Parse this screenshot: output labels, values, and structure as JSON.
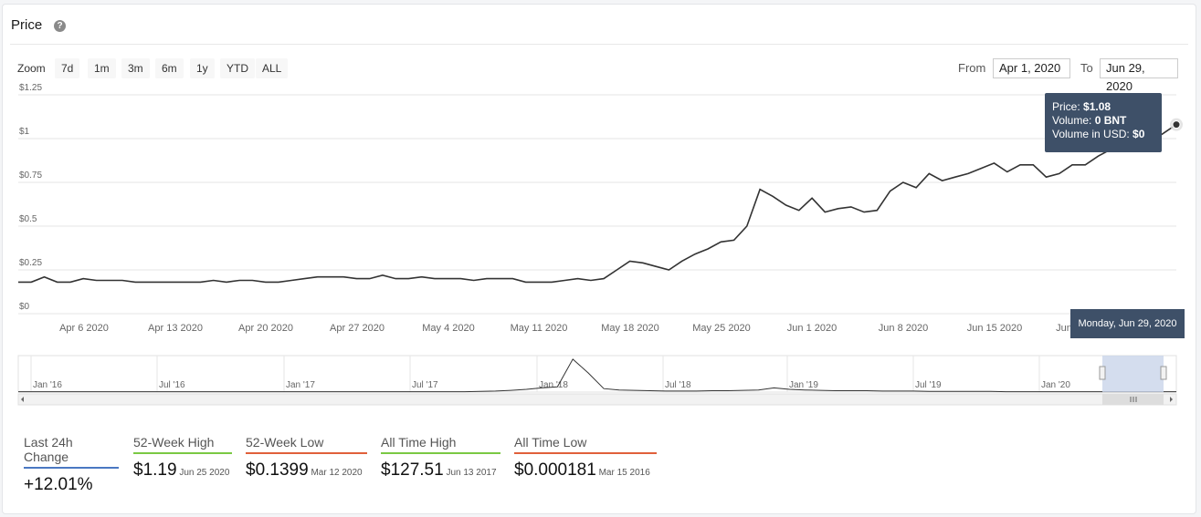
{
  "header": {
    "title": "Price",
    "help_icon": "?"
  },
  "zoom": {
    "label": "Zoom",
    "buttons": [
      "7d",
      "1m",
      "3m",
      "6m",
      "1y",
      "YTD",
      "ALL"
    ]
  },
  "range": {
    "from_label": "From",
    "from_value": "Apr 1, 2020",
    "to_label": "To",
    "to_value": "Jun 29, 2020"
  },
  "chart_data": {
    "type": "line",
    "title": "Price",
    "y_ticks": [
      "$1.25",
      "$1",
      "$0.75",
      "$0.5",
      "$0.25",
      "$0"
    ],
    "ylim": [
      0,
      1.25
    ],
    "x_ticks": [
      "Apr 6 2020",
      "Apr 13 2020",
      "Apr 20 2020",
      "Apr 27 2020",
      "May 4 2020",
      "May 11 2020",
      "May 18 2020",
      "May 25 2020",
      "Jun 1 2020",
      "Jun 8 2020",
      "Jun 15 2020",
      "Jun"
    ],
    "x_range": [
      "2020-04-01",
      "2020-06-29"
    ],
    "series": [
      {
        "values": [
          0.18,
          0.18,
          0.21,
          0.18,
          0.18,
          0.2,
          0.19,
          0.19,
          0.19,
          0.18,
          0.18,
          0.18,
          0.18,
          0.18,
          0.18,
          0.19,
          0.18,
          0.19,
          0.19,
          0.18,
          0.18,
          0.19,
          0.2,
          0.21,
          0.21,
          0.21,
          0.2,
          0.2,
          0.22,
          0.2,
          0.2,
          0.21,
          0.2,
          0.2,
          0.2,
          0.19,
          0.2,
          0.2,
          0.2,
          0.18,
          0.18,
          0.18,
          0.19,
          0.2,
          0.19,
          0.2,
          0.25,
          0.3,
          0.29,
          0.27,
          0.25,
          0.3,
          0.34,
          0.37,
          0.41,
          0.42,
          0.5,
          0.71,
          0.67,
          0.62,
          0.59,
          0.66,
          0.58,
          0.6,
          0.61,
          0.58,
          0.59,
          0.7,
          0.75,
          0.72,
          0.8,
          0.76,
          0.78,
          0.8,
          0.83,
          0.86,
          0.81,
          0.85,
          0.85,
          0.78,
          0.8,
          0.85,
          0.85,
          0.9,
          0.94,
          0.93,
          0.96,
          0.98,
          1.03,
          1.08
        ]
      }
    ],
    "tooltip": {
      "price_label": "Price:",
      "price": "$1.08",
      "volume_label": "Volume:",
      "volume": "0 BNT",
      "usd_label": "Volume in USD:",
      "usd": "$0",
      "date": "Monday, Jun 29, 2020"
    },
    "navigator": {
      "x_ticks": [
        "Jan '16",
        "Jul '16",
        "Jan '17",
        "Jul '17",
        "Jan '18",
        "Jul '18",
        "Jan '19",
        "Jul '19",
        "Jan '20"
      ],
      "values": [
        0.01,
        0.01,
        0.01,
        0.01,
        0.01,
        0.01,
        0.01,
        0.01,
        0.02,
        0.03,
        0.05,
        0.08,
        0.12,
        0.15,
        0.95,
        0.55,
        0.1,
        0.06,
        0.05,
        0.04,
        0.03,
        0.03,
        0.03,
        0.04,
        0.04,
        0.05,
        0.06,
        0.12,
        0.08,
        0.06,
        0.05,
        0.04,
        0.04,
        0.04,
        0.03,
        0.03,
        0.03,
        0.02,
        0.02,
        0.02,
        0.02,
        0.02,
        0.01,
        0.01,
        0.01,
        0.01,
        0.01,
        0.01,
        0.01,
        0.01,
        0.01,
        0.01,
        0.01,
        0.01
      ]
    },
    "accent": "#3e5068"
  },
  "stats": [
    {
      "label": "Last 24h Change",
      "value": "+12.01%",
      "date": "",
      "color": "#4a78c2"
    },
    {
      "label": "52-Week High",
      "value": "$1.19",
      "date": "Jun 25 2020",
      "color": "#7ac943"
    },
    {
      "label": "52-Week Low",
      "value": "$0.1399",
      "date": "Mar 12 2020",
      "color": "#e0603a"
    },
    {
      "label": "All Time High",
      "value": "$127.51",
      "date": "Jun 13 2017",
      "color": "#7ac943"
    },
    {
      "label": "All Time Low",
      "value": "$0.000181",
      "date": "Mar 15 2016",
      "color": "#e0603a"
    }
  ]
}
